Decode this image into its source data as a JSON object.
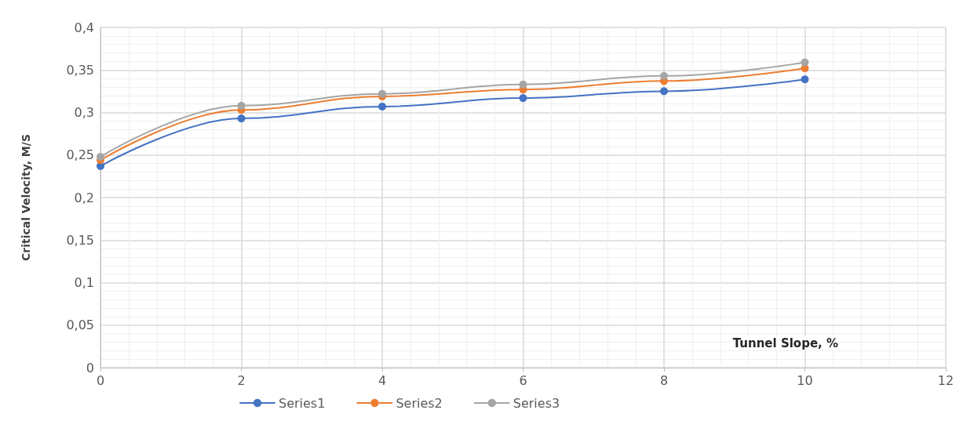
{
  "chart_data": {
    "type": "line",
    "xlabel": "Tunnel Slope, %",
    "ylabel": "Critical Velocity, M/S",
    "x": [
      0,
      2,
      4,
      6,
      8,
      10
    ],
    "series": [
      {
        "name": "Series1",
        "color": "#4472c4",
        "values": [
          0.237,
          0.293,
          0.307,
          0.317,
          0.325,
          0.339
        ]
      },
      {
        "name": "Series2",
        "color": "#ed7d31",
        "values": [
          0.244,
          0.303,
          0.319,
          0.327,
          0.337,
          0.352
        ]
      },
      {
        "name": "Series3",
        "color": "#a5a5a5",
        "values": [
          0.248,
          0.308,
          0.322,
          0.333,
          0.343,
          0.359
        ]
      }
    ],
    "xlim": [
      0,
      12
    ],
    "xticks": [
      0,
      2,
      4,
      6,
      8,
      10,
      12
    ],
    "ylim": [
      0,
      0.4
    ],
    "yticks": [
      {
        "value": 0,
        "label": "0"
      },
      {
        "value": 0.05,
        "label": "0,05"
      },
      {
        "value": 0.1,
        "label": "0,1"
      },
      {
        "value": 0.15,
        "label": "0,15"
      },
      {
        "value": 0.2,
        "label": "0,2"
      },
      {
        "value": 0.25,
        "label": "0,25"
      },
      {
        "value": 0.3,
        "label": "0,3"
      },
      {
        "value": 0.35,
        "label": "0,35"
      },
      {
        "value": 0.4,
        "label": "0,4"
      }
    ],
    "grid": true,
    "legend": "bottom",
    "marker": "circle",
    "line_style": "solid"
  }
}
